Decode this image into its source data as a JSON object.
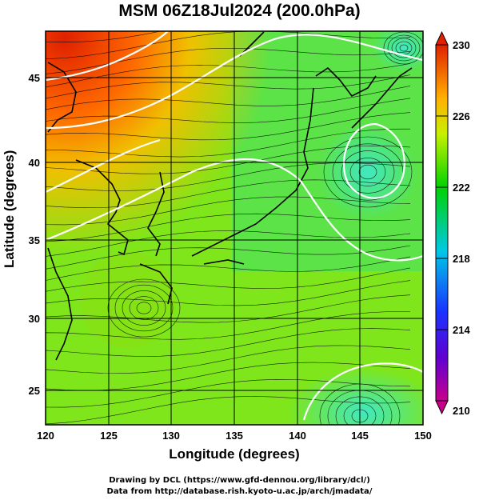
{
  "title": "MSM 06Z18Jul2024 (200.0hPa)",
  "axes": {
    "xlabel": "Longitude (degrees)",
    "ylabel": "Latitude  (degrees)",
    "x_ticks": [
      "120",
      "125",
      "130",
      "135",
      "140",
      "145",
      "150"
    ],
    "y_ticks": [
      "25",
      "30",
      "35",
      "40",
      "45"
    ]
  },
  "colorbar": {
    "ticks": [
      "230",
      "226",
      "222",
      "218",
      "214",
      "210"
    ],
    "colors": [
      "#c8008c",
      "#1a33ff",
      "#00c8e6",
      "#00d200",
      "#f0f000",
      "#ff8000",
      "#e02000"
    ]
  },
  "credits": {
    "line1": "Drawing by DCL (https://www.gfd-dennou.org/library/dcl/)",
    "line2": "Data from http://database.rish.kyoto-u.ac.jp/arch/jmadata/"
  },
  "chart_data": {
    "type": "heatmap",
    "title": "MSM 06Z18Jul2024 (200.0hPa)",
    "xlabel": "Longitude (degrees)",
    "ylabel": "Latitude  (degrees)",
    "xlim": [
      120,
      150
    ],
    "ylim": [
      22.5,
      47.5
    ],
    "x_ticks": [
      120,
      125,
      130,
      135,
      140,
      145,
      150
    ],
    "y_ticks": [
      25,
      30,
      35,
      40,
      45
    ],
    "colorbar_range": [
      210,
      230
    ],
    "colorbar_ticks": [
      210,
      214,
      218,
      222,
      226,
      230
    ],
    "grid": true,
    "overlays": [
      "streamlines",
      "coastlines",
      "white contours"
    ]
  }
}
